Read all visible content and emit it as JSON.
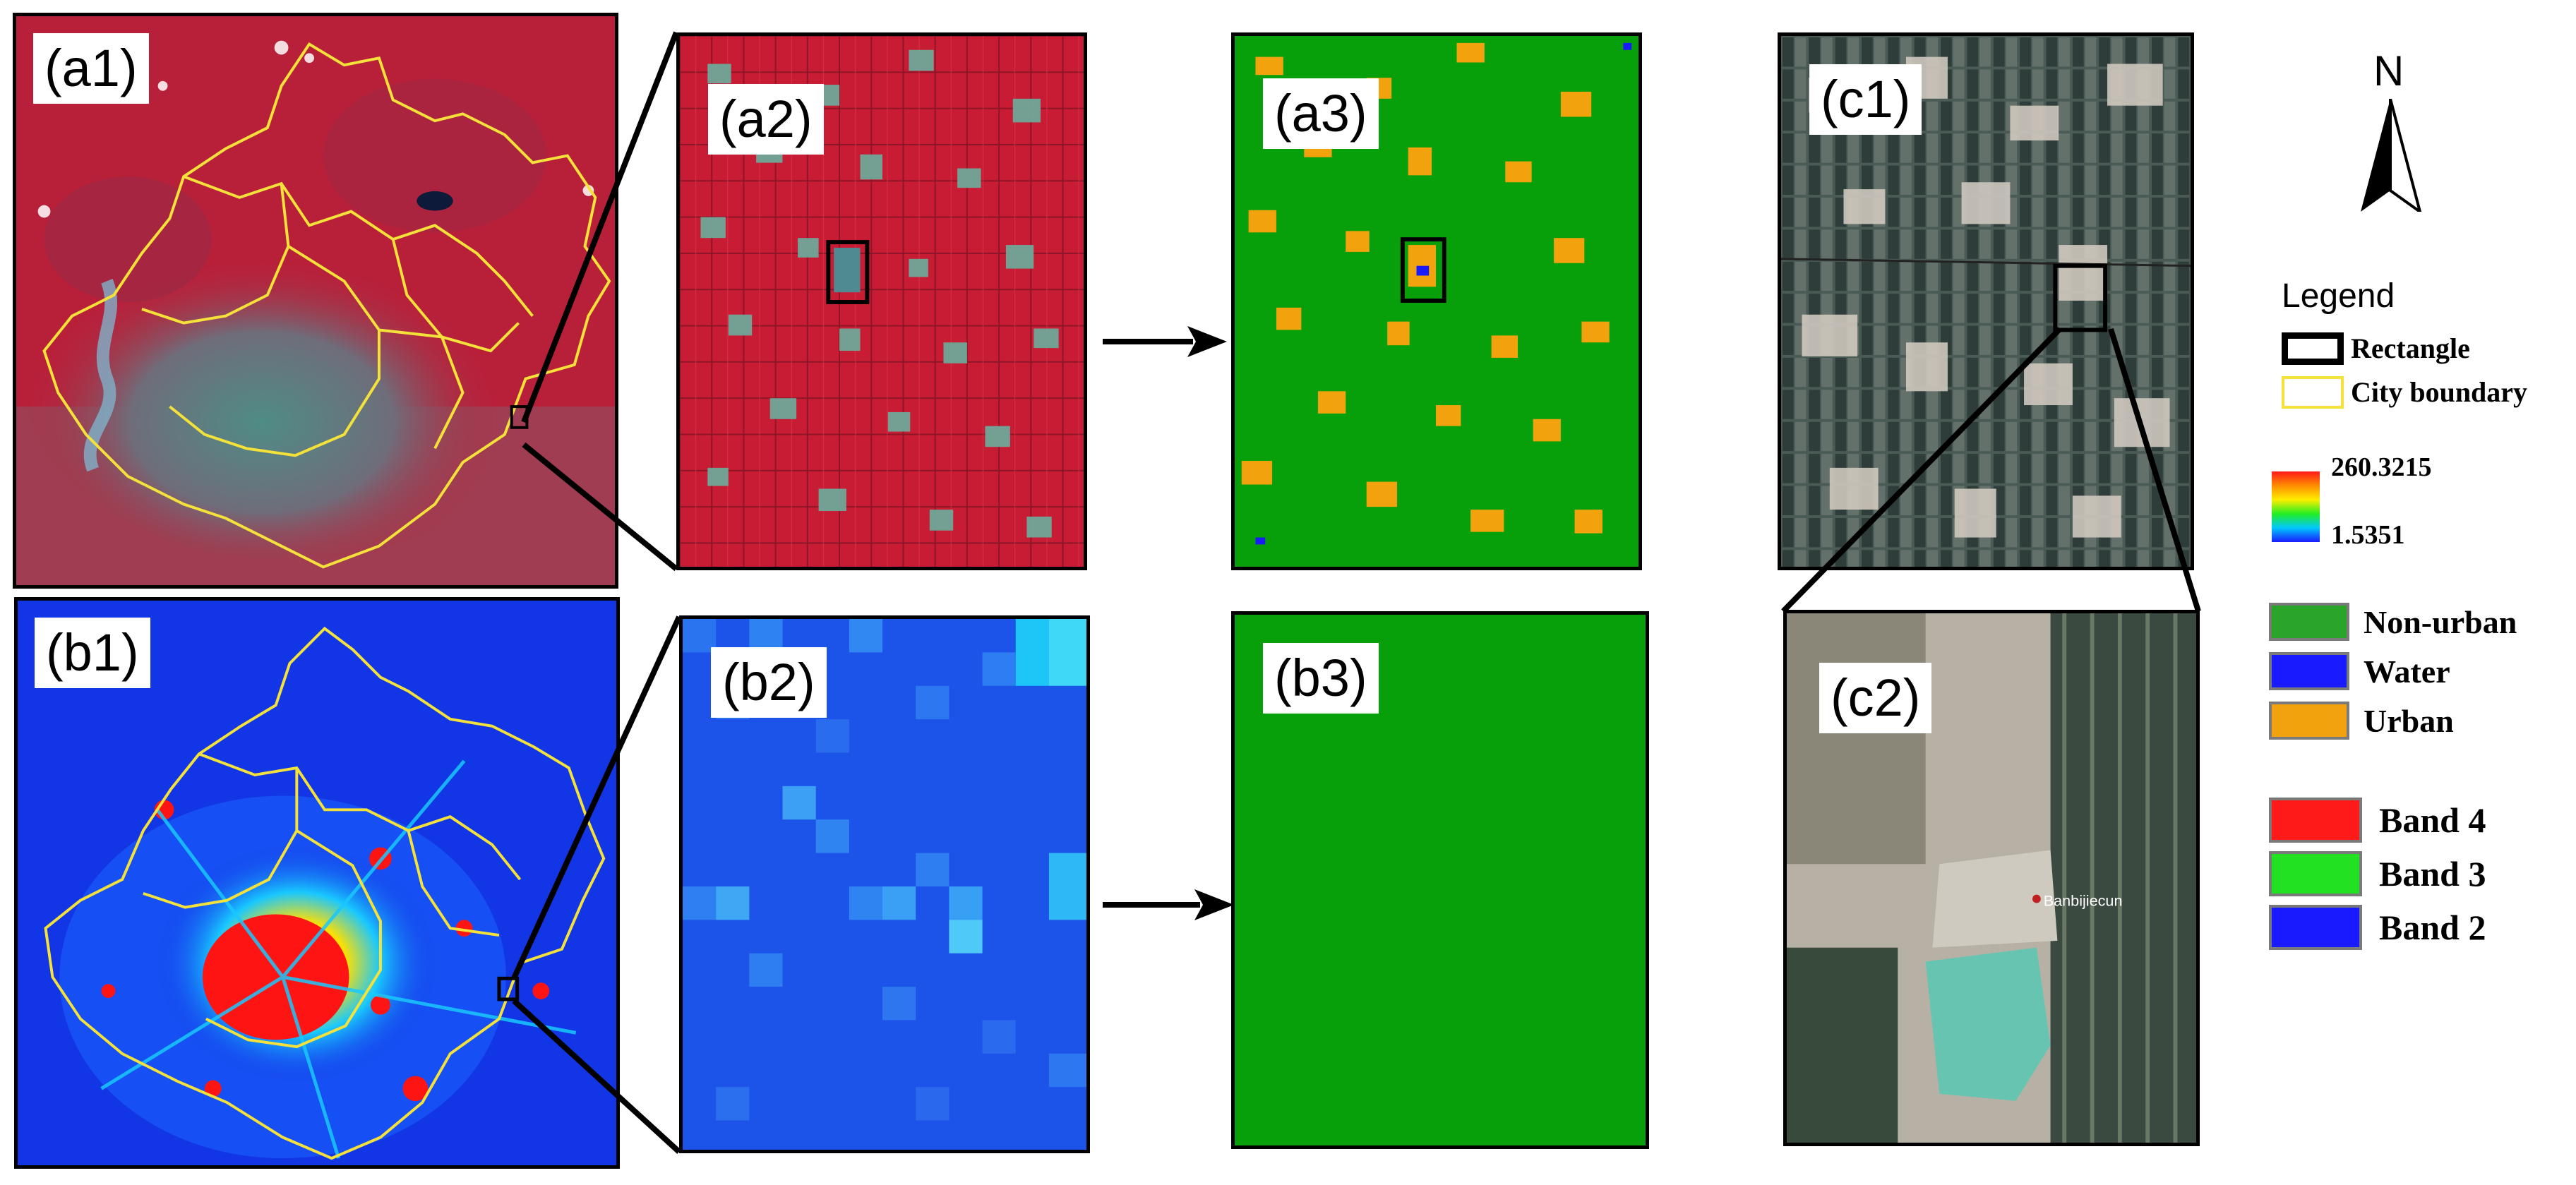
{
  "panels": {
    "a1": "(a1)",
    "a2": "(a2)",
    "a3": "(a3)",
    "b1": "(b1)",
    "b2": "(b2)",
    "b3": "(b3)",
    "c1": "(c1)",
    "c2": "(c2)"
  },
  "north": "N",
  "legend": {
    "title": "Legend",
    "rectangle": "Rectangle",
    "city_boundary": "City boundary",
    "ntl_max": "260.3215",
    "ntl_min": "1.5351",
    "classes": [
      {
        "label": "Non-urban",
        "color": "#2aa52a"
      },
      {
        "label": "Water",
        "color": "#1a1aff"
      },
      {
        "label": "Urban",
        "color": "#f2a20c"
      }
    ],
    "bands": [
      {
        "label": "Band 4",
        "color": "#ff1a1a"
      },
      {
        "label": "Band 3",
        "color": "#22e022"
      },
      {
        "label": "Band 2",
        "color": "#1a1aff"
      }
    ]
  },
  "c2_place_label": "Banbijiecun",
  "colors": {
    "false_color_red": "#c21e32",
    "ntl_blue": "#1236e6",
    "non_urban_green": "#07a00a",
    "urban_orange": "#f2a20c",
    "boundary_yellow": "#f4e23a"
  }
}
